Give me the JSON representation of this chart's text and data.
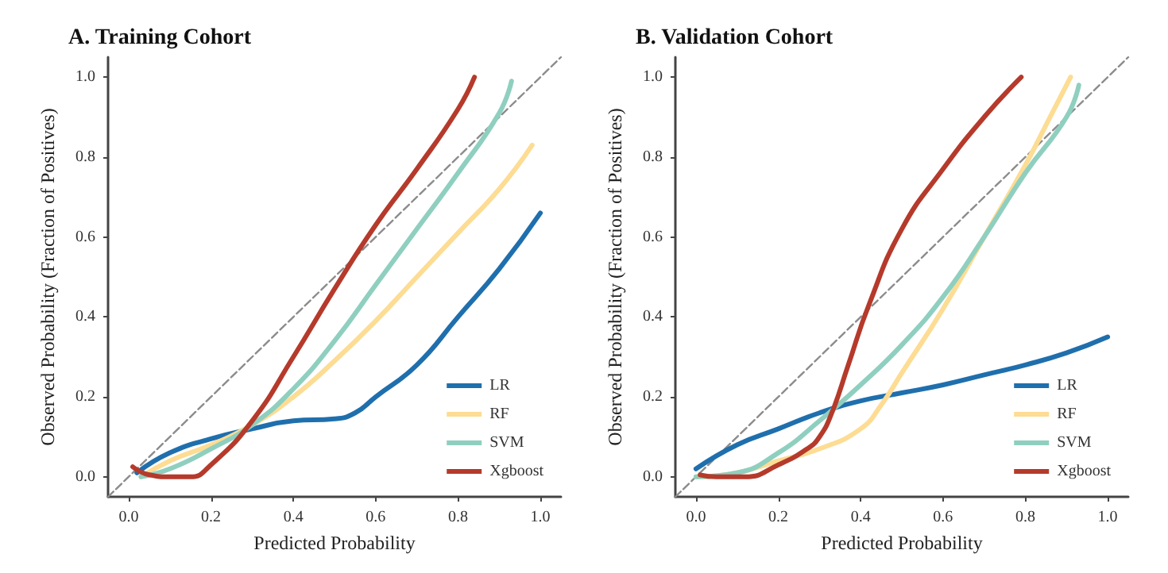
{
  "chart_data": [
    {
      "type": "line",
      "title": "A. Training Cohort",
      "xlabel": "Predicted Probability",
      "ylabel": "Observed Probability (Fraction of Positives)",
      "xlim": [
        -0.05,
        1.05
      ],
      "ylim": [
        -0.05,
        1.05
      ],
      "xticks": [
        {
          "value": 0,
          "label": "0.0"
        },
        {
          "value": 0.2,
          "label": "0.2"
        },
        {
          "value": 0.4,
          "label": "0.4"
        },
        {
          "value": 0.6,
          "label": "0.6"
        },
        {
          "value": 0.8,
          "label": "0.8"
        },
        {
          "value": 1,
          "label": "1.0"
        }
      ],
      "yticks": [
        {
          "value": 0,
          "label": "0.0"
        },
        {
          "value": 0.2,
          "label": "0.2"
        },
        {
          "value": 0.4,
          "label": "0.4"
        },
        {
          "value": 0.6,
          "label": "0.6"
        },
        {
          "value": 0.8,
          "label": "0.8"
        },
        {
          "value": 1,
          "label": "1.0"
        }
      ],
      "grid": false,
      "legend": "bottom right",
      "marker": "none",
      "series": [
        {
          "type": "line",
          "color": "#8c8c8c",
          "line_style": "dashed",
          "x": [
            -0.05,
            1.05
          ],
          "values": [
            -0.05,
            1.05
          ]
        },
        {
          "name": "LR",
          "color": "#1f6fad",
          "x": [
            0.02,
            0.1,
            0.2,
            0.3,
            0.4,
            0.5,
            0.55,
            0.6,
            0.7,
            0.8,
            0.9,
            1.0
          ],
          "values": [
            0.01,
            0.06,
            0.095,
            0.12,
            0.14,
            0.145,
            0.16,
            0.2,
            0.28,
            0.4,
            0.52,
            0.66
          ]
        },
        {
          "name": "RF",
          "color": "#fddc93",
          "x": [
            0.03,
            0.1,
            0.2,
            0.3,
            0.4,
            0.5,
            0.6,
            0.7,
            0.8,
            0.9,
            0.98
          ],
          "values": [
            0.0,
            0.04,
            0.08,
            0.13,
            0.2,
            0.29,
            0.39,
            0.5,
            0.61,
            0.72,
            0.83
          ]
        },
        {
          "name": "SVM",
          "color": "#8fcfbf",
          "x": [
            0.03,
            0.1,
            0.2,
            0.3,
            0.4,
            0.5,
            0.6,
            0.7,
            0.8,
            0.9,
            0.93
          ],
          "values": [
            0.0,
            0.02,
            0.07,
            0.13,
            0.22,
            0.34,
            0.48,
            0.62,
            0.76,
            0.91,
            0.99
          ]
        },
        {
          "name": "Xgboost",
          "color": "#b53a2b",
          "x": [
            0.01,
            0.05,
            0.1,
            0.15,
            0.2,
            0.3,
            0.4,
            0.5,
            0.6,
            0.7,
            0.8,
            0.84
          ],
          "values": [
            0.025,
            0.005,
            0.0,
            0.0,
            0.03,
            0.14,
            0.3,
            0.47,
            0.63,
            0.77,
            0.92,
            1.0
          ]
        }
      ]
    },
    {
      "type": "line",
      "title": "B. Validation Cohort",
      "xlabel": "Predicted Probability",
      "ylabel": "Observed Probability (Fraction of Positives)",
      "xlim": [
        -0.05,
        1.05
      ],
      "ylim": [
        -0.05,
        1.05
      ],
      "xticks": [
        {
          "value": 0,
          "label": "0.0"
        },
        {
          "value": 0.2,
          "label": "0.2"
        },
        {
          "value": 0.4,
          "label": "0.4"
        },
        {
          "value": 0.6,
          "label": "0.6"
        },
        {
          "value": 0.8,
          "label": "0.8"
        },
        {
          "value": 1,
          "label": "1.0"
        }
      ],
      "yticks": [
        {
          "value": 0,
          "label": "0.0"
        },
        {
          "value": 0.2,
          "label": "0.2"
        },
        {
          "value": 0.4,
          "label": "0.4"
        },
        {
          "value": 0.6,
          "label": "0.6"
        },
        {
          "value": 0.8,
          "label": "0.8"
        },
        {
          "value": 1,
          "label": "1.0"
        }
      ],
      "grid": false,
      "legend": "bottom right",
      "marker": "none",
      "series": [
        {
          "type": "line",
          "color": "#8c8c8c",
          "line_style": "dashed",
          "x": [
            -0.05,
            1.05
          ],
          "values": [
            -0.05,
            1.05
          ]
        },
        {
          "name": "LR",
          "color": "#1f6fad",
          "x": [
            0.0,
            0.1,
            0.2,
            0.3,
            0.4,
            0.5,
            0.6,
            0.7,
            0.8,
            0.9,
            1.0
          ],
          "values": [
            0.02,
            0.08,
            0.12,
            0.16,
            0.19,
            0.21,
            0.23,
            0.255,
            0.28,
            0.31,
            0.35
          ]
        },
        {
          "name": "RF",
          "color": "#fddc93",
          "x": [
            0.0,
            0.1,
            0.2,
            0.3,
            0.4,
            0.45,
            0.5,
            0.6,
            0.7,
            0.8,
            0.86,
            0.91
          ],
          "values": [
            0.0,
            0.01,
            0.04,
            0.07,
            0.12,
            0.18,
            0.26,
            0.42,
            0.6,
            0.78,
            0.9,
            1.0
          ]
        },
        {
          "name": "SVM",
          "color": "#8fcfbf",
          "x": [
            0.0,
            0.1,
            0.2,
            0.3,
            0.4,
            0.5,
            0.6,
            0.7,
            0.8,
            0.9,
            0.93
          ],
          "values": [
            0.0,
            0.01,
            0.06,
            0.14,
            0.23,
            0.33,
            0.45,
            0.6,
            0.76,
            0.9,
            0.98
          ]
        },
        {
          "name": "Xgboost",
          "color": "#b53a2b",
          "x": [
            0.01,
            0.05,
            0.12,
            0.2,
            0.27,
            0.3,
            0.33,
            0.37,
            0.42,
            0.5,
            0.6,
            0.7,
            0.79
          ],
          "values": [
            0.005,
            0.0,
            0.0,
            0.03,
            0.07,
            0.1,
            0.16,
            0.28,
            0.43,
            0.62,
            0.77,
            0.9,
            1.0
          ]
        }
      ]
    }
  ]
}
